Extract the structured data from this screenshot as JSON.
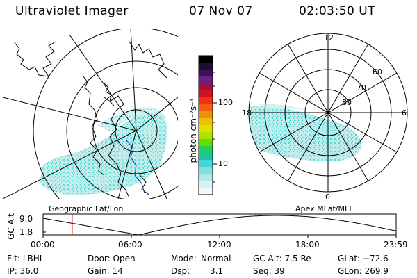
{
  "header": {
    "title": "Ultraviolet Imager",
    "date": "07 Nov 07",
    "time": "02:03:50 UT"
  },
  "colorbar": {
    "unit_label": "photon cm⁻²s⁻¹",
    "ticks": [
      "100",
      "10"
    ],
    "colors": [
      "#000000",
      "#1a1030",
      "#3a1060",
      "#6a2080",
      "#a01040",
      "#d01020",
      "#f03010",
      "#f06010",
      "#f09010",
      "#f0c000",
      "#e0e000",
      "#b0e000",
      "#60e000",
      "#20d060",
      "#20c0a0",
      "#40d8d8",
      "#80e0e0",
      "#b0e8e8",
      "#d8f0f0",
      "#f0f8f8"
    ]
  },
  "geo_map": {
    "label": "Geographic Lat/Lon"
  },
  "polar_plot": {
    "label": "Apex MLat/MLT",
    "mlt_labels": {
      "top": "12",
      "left": "18",
      "right": "6",
      "bottom": "0"
    },
    "lat_labels": [
      "60",
      "70",
      "80"
    ]
  },
  "altitude_plot": {
    "ylabel": "GC Alt",
    "yticks": [
      "9.0",
      "1.8"
    ],
    "xticks": [
      "00:00",
      "06:00",
      "12:00",
      "18:00",
      "23:59"
    ],
    "current_time_marker_color": "#e02020"
  },
  "status": {
    "row1": {
      "filter": "Flt: LBHL",
      "door": "Door: Open",
      "mode_label": "Mode:",
      "mode_value": "Normal",
      "gc_alt": "GC Alt: 7.5 Re",
      "glat": "GLat: −72.6"
    },
    "row2": {
      "ip": "IP: 36.0",
      "gain": "Gain: 14",
      "dsp_label": "Dsp:",
      "dsp_value": "3.1",
      "seq": "Seq: 39",
      "glon": "GLon: 269.9"
    }
  }
}
